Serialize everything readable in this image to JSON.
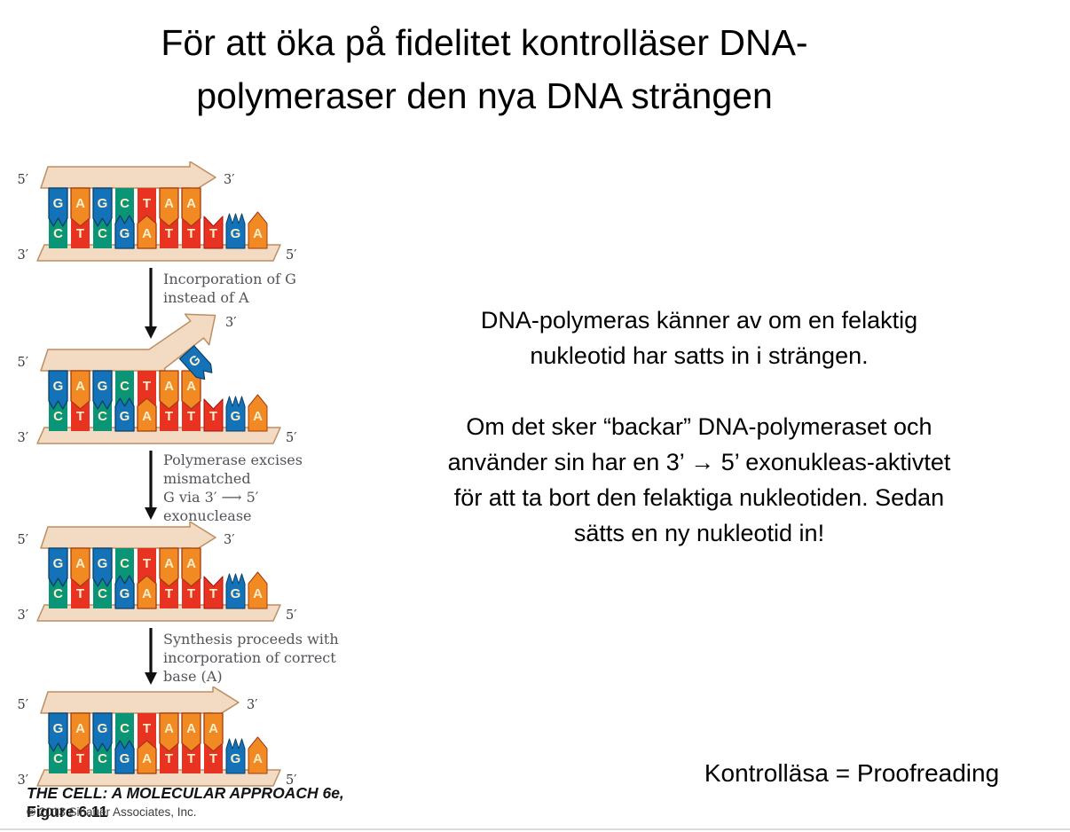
{
  "title_lines": [
    "För att öka på fidelitet kontrolläser DNA-",
    "polymeraser den nya DNA strängen"
  ],
  "body": {
    "para1_lines": [
      "DNA-polymeras känner av om en felaktig",
      "nukleotid har satts in i strängen."
    ],
    "para2_lines": [
      "Om det sker “backar” DNA-polymeraset och",
      "använder sin har en 3’ → 5’ exonukleas-aktivtet",
      "för att ta bort den felaktiga nukleotiden. Sedan",
      "sätts en ny nukleotid in!"
    ],
    "proofreading_note": "Kontrolläsa = Proofreading"
  },
  "colors": {
    "bases": {
      "A": "#F28A24",
      "T": "#E93322",
      "G": "#1472B8",
      "C": "#0A9577"
    },
    "base_dark": {
      "A": "#A63A10",
      "T": "#A31409",
      "G": "#0A4069",
      "C": "#046A52"
    },
    "backbone_fill": "#F3DAC2",
    "backbone_stroke": "#BE8E62",
    "step_label_color": "#53545a"
  },
  "figure": {
    "panels": [
      {
        "id": "panel-1",
        "arrow": "straight",
        "new_strand": [
          "G",
          "A",
          "G",
          "C",
          "T",
          "A",
          "A"
        ],
        "template_strand": [
          "C",
          "T",
          "C",
          "G",
          "A",
          "T",
          "T",
          "T",
          "G",
          "A"
        ],
        "labels": {
          "top_left": "5′",
          "top_right": "3′",
          "bottom_left": "3′",
          "bottom_right": "5′"
        }
      },
      {
        "id": "panel-2",
        "arrow": "bent",
        "mismatch_base": "G",
        "new_strand": [
          "G",
          "A",
          "G",
          "C",
          "T",
          "A",
          "A"
        ],
        "template_strand": [
          "C",
          "T",
          "C",
          "G",
          "A",
          "T",
          "T",
          "T",
          "G",
          "A"
        ],
        "labels": {
          "top_left": "5′",
          "top_right": "3′",
          "bottom_left": "3′",
          "bottom_right": "5′"
        }
      },
      {
        "id": "panel-3",
        "arrow": "straight",
        "new_strand": [
          "G",
          "A",
          "G",
          "C",
          "T",
          "A",
          "A"
        ],
        "template_strand": [
          "C",
          "T",
          "C",
          "G",
          "A",
          "T",
          "T",
          "T",
          "G",
          "A"
        ],
        "labels": {
          "top_left": "5′",
          "top_right": "3′",
          "bottom_left": "3′",
          "bottom_right": "5′"
        }
      },
      {
        "id": "panel-4",
        "arrow": "straight-long",
        "new_strand": [
          "G",
          "A",
          "G",
          "C",
          "T",
          "A",
          "A",
          "A"
        ],
        "template_strand": [
          "C",
          "T",
          "C",
          "G",
          "A",
          "T",
          "T",
          "T",
          "G",
          "A"
        ],
        "labels": {
          "top_left": "5′",
          "top_right": "3′",
          "bottom_left": "3′",
          "bottom_right": "5′"
        }
      }
    ],
    "steps": [
      {
        "lines": [
          "Incorporation of G",
          "instead of A"
        ]
      },
      {
        "lines": [
          "Polymerase excises",
          "mismatched",
          "G via 3′ ⟶ 5′",
          "exonuclease"
        ]
      },
      {
        "lines": [
          "Synthesis proceeds with",
          "incorporation of correct",
          "base (A)"
        ]
      }
    ],
    "caption": {
      "book": "THE CELL: A MOLECULAR APPROACH 6e,",
      "figure": "Figure 6.11"
    },
    "copyright": "© 2013 Sinauer Associates, Inc."
  }
}
